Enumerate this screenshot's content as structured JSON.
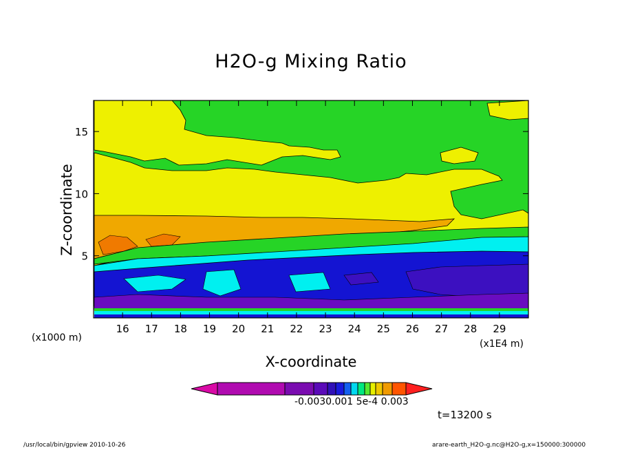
{
  "chart_data": {
    "type": "heatmap",
    "title": "H2O-g Mixing Ratio",
    "xlabel": "X-coordinate",
    "ylabel": "Z-coordinate",
    "x_unit_label": "(x1E4 m)",
    "y_unit_label": "(x1000 m)",
    "xlim": [
      15.0,
      30.0
    ],
    "ylim": [
      0.0,
      17.5
    ],
    "x_ticks": [
      16,
      17,
      18,
      19,
      20,
      21,
      22,
      23,
      24,
      25,
      26,
      27,
      28,
      29
    ],
    "y_ticks": [
      5,
      10,
      15
    ],
    "colorbar": {
      "orientation": "horizontal",
      "colors": [
        "#d90aa6",
        "#b00bb0",
        "#7a0cb0",
        "#5a0ab8",
        "#3010b8",
        "#1a1adc",
        "#1460f0",
        "#00d8f0",
        "#00e880",
        "#55e830",
        "#e8f000",
        "#f0c800",
        "#f09a00",
        "#ff5500",
        "#ff2020"
      ],
      "labels": [
        "-0.003",
        "-0.001",
        "5e-4",
        "0.003"
      ],
      "label_text": "-0.0030.001 5e-4  0.003"
    },
    "grid": false
  },
  "time_label": "t=13200 s",
  "footer": {
    "left": "/usr/local/bin/gpview  2010-10-26",
    "right": "arare-earth_H2O-g.nc@H2O-g,x=150000:300000"
  },
  "colors": {
    "green": "#26d426",
    "yellow": "#eef000",
    "orange": "#f0a800",
    "cyan": "#00f0f0",
    "blue": "#1414d2",
    "deep_blue": "#3c10c0",
    "purple": "#6a0cc0"
  }
}
